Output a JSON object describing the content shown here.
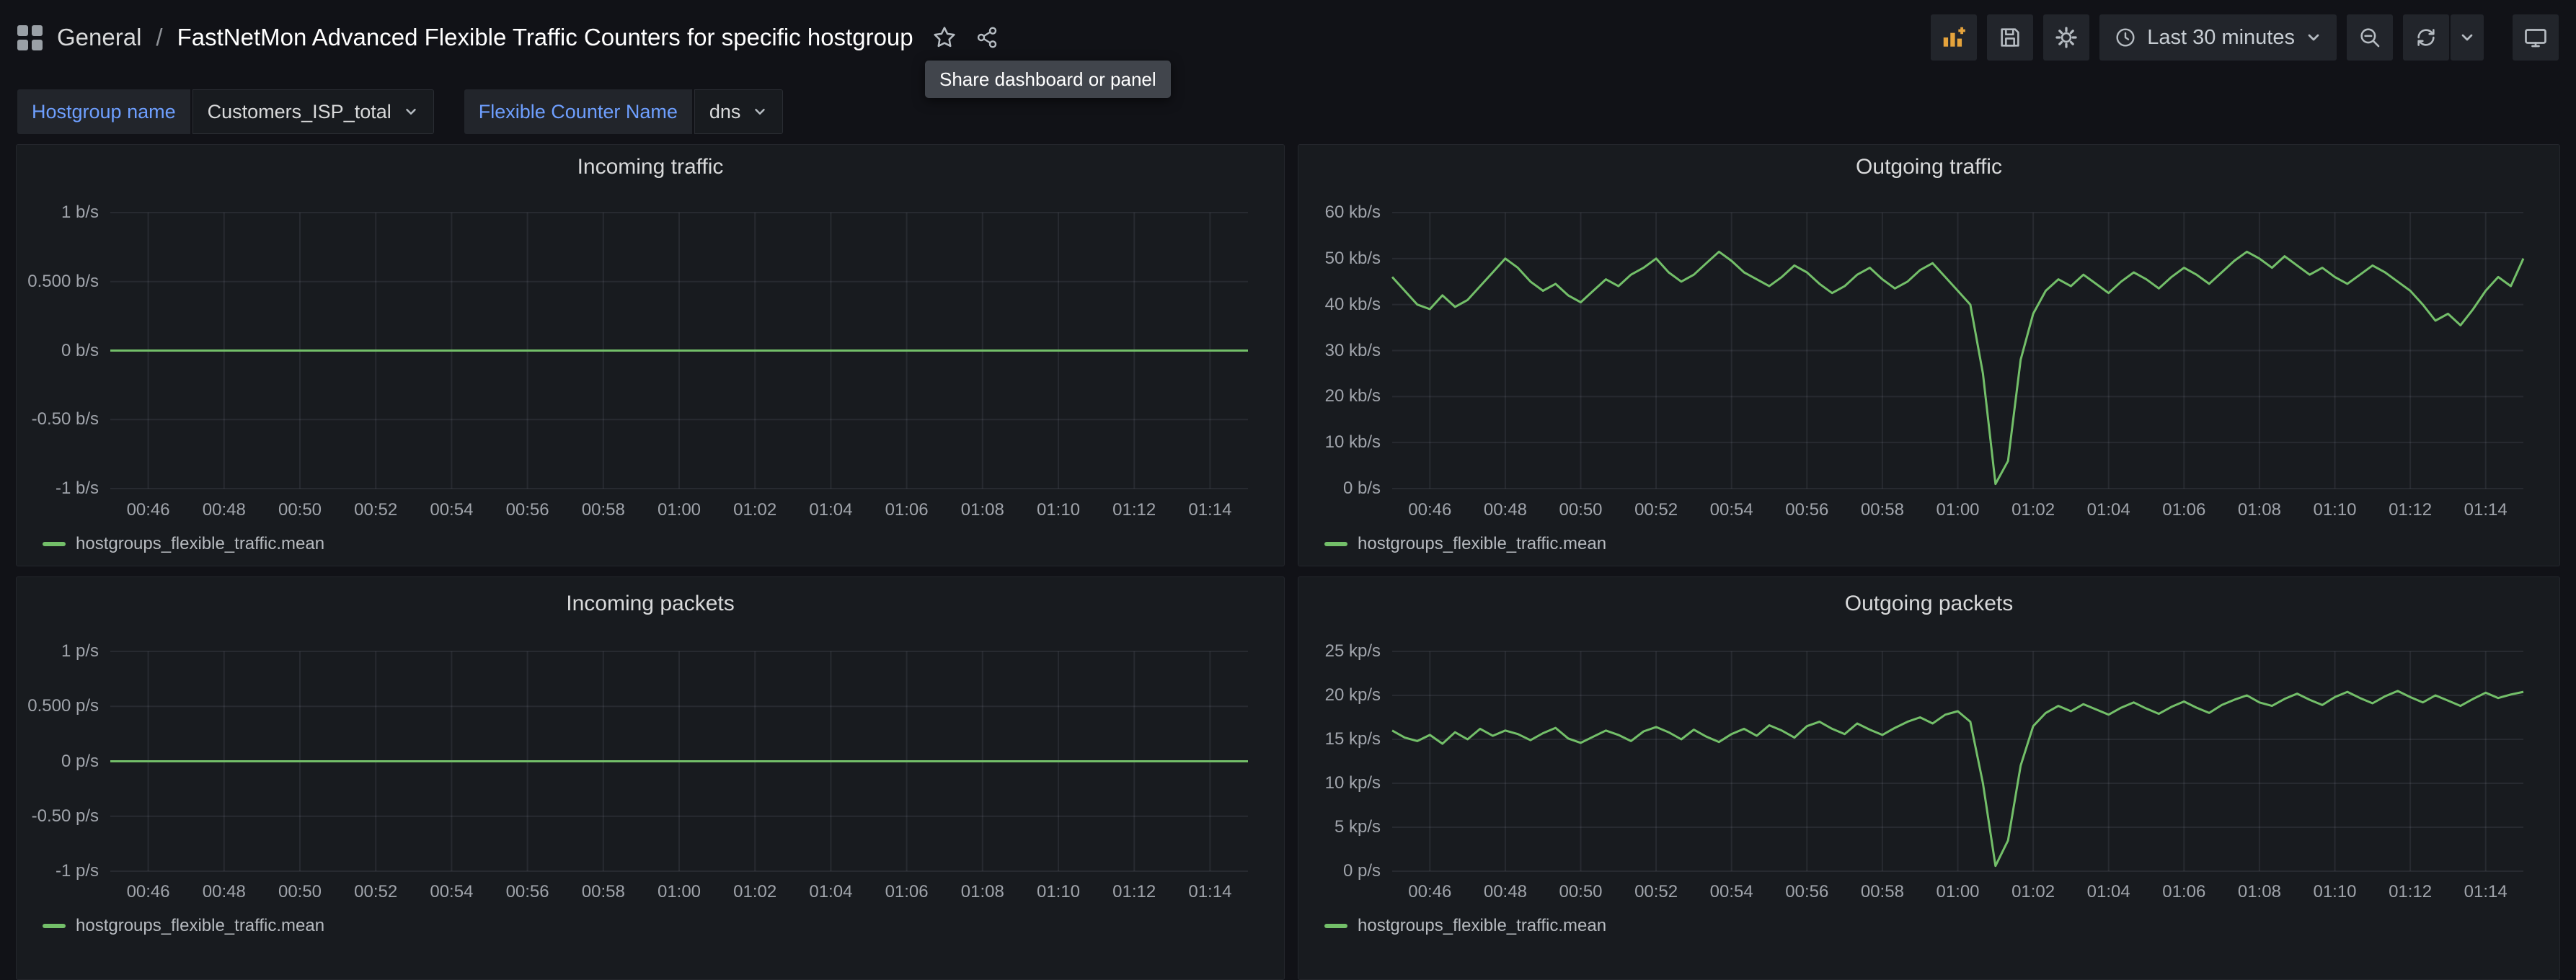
{
  "header": {
    "folder": "General",
    "separator": "/",
    "title": "FastNetMon Advanced Flexible Traffic Counters for specific hostgroup",
    "time_range": "Last 30 minutes",
    "tooltip": "Share dashboard or panel",
    "icons": [
      "apps",
      "star",
      "share-alt",
      "panel-add",
      "save",
      "settings",
      "clock",
      "zoom-out",
      "refresh",
      "chevron-down",
      "kiosk-monitor"
    ]
  },
  "variables": [
    {
      "label": "Hostgroup name",
      "value": "Customers_ISP_total"
    },
    {
      "label": "Flexible Counter Name",
      "value": "dns"
    }
  ],
  "theme": {
    "background": "#111217",
    "panel_background": "#181b1f",
    "series_green": "#73bf69",
    "variable_label_blue": "#6e9fff"
  },
  "chart_data": [
    {
      "type": "line",
      "title": "Incoming traffic",
      "x_range": [
        "00:45",
        "01:15"
      ],
      "x_ticks": [
        "00:46",
        "00:48",
        "00:50",
        "00:52",
        "00:54",
        "00:56",
        "00:58",
        "01:00",
        "01:02",
        "01:04",
        "01:06",
        "01:08",
        "01:10",
        "01:12",
        "01:14"
      ],
      "ylim": [
        -1,
        1
      ],
      "y_ticks": [
        {
          "value": 1,
          "label": "1 b/s"
        },
        {
          "value": 0.5,
          "label": "0.500 b/s"
        },
        {
          "value": 0,
          "label": "0 b/s"
        },
        {
          "value": -0.5,
          "label": "-0.50 b/s"
        },
        {
          "value": -1,
          "label": "-1 b/s"
        }
      ],
      "series": [
        {
          "name": "hostgroups_flexible_traffic.mean",
          "color": "#73bf69",
          "values": [
            0,
            0
          ]
        }
      ]
    },
    {
      "type": "line",
      "title": "Outgoing traffic",
      "unit": "kb/s",
      "x_range": [
        "00:45",
        "01:15"
      ],
      "x_ticks": [
        "00:46",
        "00:48",
        "00:50",
        "00:52",
        "00:54",
        "00:56",
        "00:58",
        "01:00",
        "01:02",
        "01:04",
        "01:06",
        "01:08",
        "01:10",
        "01:12",
        "01:14"
      ],
      "ylim": [
        0,
        60
      ],
      "y_ticks": [
        {
          "value": 60,
          "label": "60 kb/s"
        },
        {
          "value": 50,
          "label": "50 kb/s"
        },
        {
          "value": 40,
          "label": "40 kb/s"
        },
        {
          "value": 30,
          "label": "30 kb/s"
        },
        {
          "value": 20,
          "label": "20 kb/s"
        },
        {
          "value": 10,
          "label": "10 kb/s"
        },
        {
          "value": 0,
          "label": "0 b/s"
        }
      ],
      "series": [
        {
          "name": "hostgroups_flexible_traffic.mean",
          "color": "#73bf69",
          "values": [
            46,
            43,
            40,
            39,
            42,
            39.5,
            41,
            44,
            47,
            50,
            48,
            45,
            43,
            44.5,
            42,
            40.5,
            43,
            45.5,
            44,
            46.5,
            48,
            50,
            47,
            45,
            46.5,
            49,
            51.5,
            49.5,
            47,
            45.5,
            44,
            46,
            48.5,
            47,
            44.5,
            42.5,
            44,
            46.5,
            48,
            45.5,
            43.5,
            45,
            47.5,
            49,
            46,
            43,
            40,
            25,
            1,
            6,
            28,
            38,
            43,
            45.5,
            44,
            46.5,
            44.5,
            42.5,
            45,
            47,
            45.5,
            43.5,
            46,
            48,
            46.5,
            44.5,
            47,
            49.5,
            51.5,
            50,
            48,
            50.5,
            48.5,
            46.5,
            48,
            46,
            44.5,
            46.5,
            48.5,
            47,
            45,
            43,
            40,
            36.5,
            38,
            35.5,
            39,
            43,
            46,
            44,
            50
          ]
        }
      ]
    },
    {
      "type": "line",
      "title": "Incoming packets",
      "x_range": [
        "00:45",
        "01:15"
      ],
      "x_ticks": [
        "00:46",
        "00:48",
        "00:50",
        "00:52",
        "00:54",
        "00:56",
        "00:58",
        "01:00",
        "01:02",
        "01:04",
        "01:06",
        "01:08",
        "01:10",
        "01:12",
        "01:14"
      ],
      "ylim": [
        -1,
        1
      ],
      "y_ticks": [
        {
          "value": 1,
          "label": "1 p/s"
        },
        {
          "value": 0.5,
          "label": "0.500 p/s"
        },
        {
          "value": 0,
          "label": "0 p/s"
        },
        {
          "value": -0.5,
          "label": "-0.50 p/s"
        },
        {
          "value": -1,
          "label": "-1 p/s"
        }
      ],
      "series": [
        {
          "name": "hostgroups_flexible_traffic.mean",
          "color": "#73bf69",
          "values": [
            0,
            0
          ]
        }
      ]
    },
    {
      "type": "line",
      "title": "Outgoing packets",
      "unit": "kp/s",
      "x_range": [
        "00:45",
        "01:15"
      ],
      "x_ticks": [
        "00:46",
        "00:48",
        "00:50",
        "00:52",
        "00:54",
        "00:56",
        "00:58",
        "01:00",
        "01:02",
        "01:04",
        "01:06",
        "01:08",
        "01:10",
        "01:12",
        "01:14"
      ],
      "ylim": [
        0,
        25
      ],
      "y_ticks": [
        {
          "value": 25,
          "label": "25 kp/s"
        },
        {
          "value": 20,
          "label": "20 kp/s"
        },
        {
          "value": 15,
          "label": "15 kp/s"
        },
        {
          "value": 10,
          "label": "10 kp/s"
        },
        {
          "value": 5,
          "label": "5 kp/s"
        },
        {
          "value": 0,
          "label": "0 p/s"
        }
      ],
      "series": [
        {
          "name": "hostgroups_flexible_traffic.mean",
          "color": "#73bf69",
          "values": [
            16,
            15.2,
            14.8,
            15.5,
            14.5,
            15.8,
            15,
            16.2,
            15.4,
            16,
            15.6,
            14.9,
            15.7,
            16.3,
            15.1,
            14.6,
            15.3,
            16,
            15.5,
            14.8,
            15.9,
            16.4,
            15.8,
            15,
            16.1,
            15.3,
            14.7,
            15.6,
            16.2,
            15.4,
            16.6,
            16,
            15.2,
            16.5,
            17,
            16.2,
            15.6,
            16.8,
            16.1,
            15.5,
            16.3,
            17,
            17.5,
            16.8,
            17.8,
            18.2,
            17,
            10,
            0.6,
            3.5,
            12,
            16.5,
            18,
            18.8,
            18.2,
            19,
            18.4,
            17.8,
            18.6,
            19.2,
            18.5,
            17.9,
            18.7,
            19.3,
            18.6,
            18,
            18.9,
            19.5,
            20,
            19.2,
            18.8,
            19.6,
            20.2,
            19.5,
            18.9,
            19.8,
            20.4,
            19.7,
            19.1,
            19.9,
            20.5,
            19.8,
            19.2,
            20,
            19.4,
            18.8,
            19.6,
            20.3,
            19.7,
            20.1,
            20.4
          ]
        }
      ]
    }
  ]
}
